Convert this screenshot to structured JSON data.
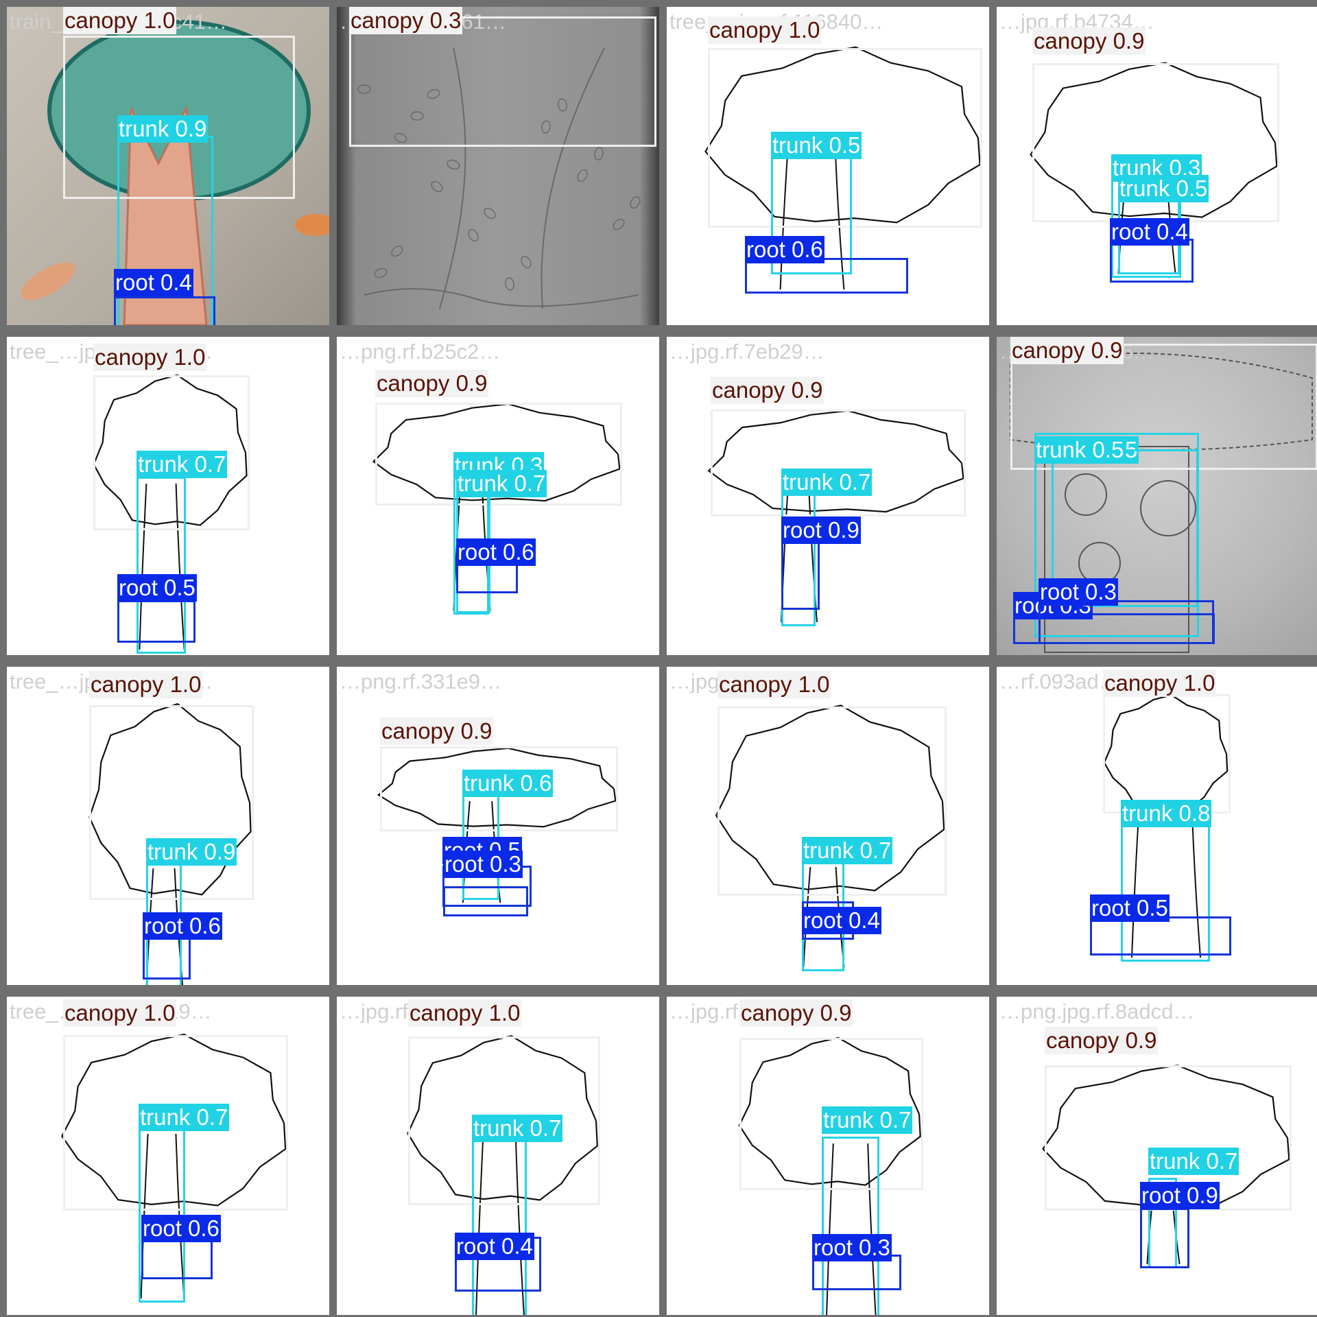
{
  "panel": {
    "type": "object-detection-prediction-grid",
    "label_colors": {
      "canopy": "#efefef",
      "trunk": "#26d3e6",
      "root": "#1335d9",
      "canopy_text": "#5a1306"
    }
  },
  "tiles": [
    {
      "filename": "train_…jpg.rf.50cc41…",
      "style": "photo-color",
      "detections": [
        {
          "cls": "canopy",
          "label": "canopy 1.0"
        },
        {
          "cls": "trunk",
          "label": "trunk 0.9"
        },
        {
          "cls": "root",
          "label": "root 0.4"
        }
      ]
    },
    {
      "filename": "…jpg.rf.1a7761…",
      "style": "photo-gray",
      "detections": [
        {
          "cls": "canopy",
          "label": "canopy 0.3"
        }
      ]
    },
    {
      "filename": "tree_…jpg.rf.116840…",
      "style": "drawing",
      "detections": [
        {
          "cls": "canopy",
          "label": "canopy 1.0"
        },
        {
          "cls": "trunk",
          "label": "trunk 0.5"
        },
        {
          "cls": "root",
          "label": "root 0.6"
        }
      ]
    },
    {
      "filename": "…jpg.rf.b4734…",
      "style": "drawing",
      "detections": [
        {
          "cls": "canopy",
          "label": "canopy 0.9"
        },
        {
          "cls": "trunk",
          "label": "trunk 0.3"
        },
        {
          "cls": "trunk",
          "label": "trunk 0.5"
        },
        {
          "cls": "root",
          "label": "root 0.4"
        }
      ]
    },
    {
      "filename": "tree_…jpg.rf.172a4…",
      "style": "drawing",
      "detections": [
        {
          "cls": "canopy",
          "label": "canopy 1.0"
        },
        {
          "cls": "trunk",
          "label": "trunk 0.7"
        },
        {
          "cls": "root",
          "label": "root 0.5"
        }
      ]
    },
    {
      "filename": "…png.rf.b25c2…",
      "style": "drawing",
      "detections": [
        {
          "cls": "canopy",
          "label": "canopy 0.9"
        },
        {
          "cls": "trunk",
          "label": "trunk 0.3"
        },
        {
          "cls": "trunk",
          "label": "trunk 0.7"
        },
        {
          "cls": "root",
          "label": "root 0.6"
        }
      ]
    },
    {
      "filename": "…jpg.rf.7eb29…",
      "style": "drawing",
      "detections": [
        {
          "cls": "canopy",
          "label": "canopy 0.9"
        },
        {
          "cls": "trunk",
          "label": "trunk 0.7"
        },
        {
          "cls": "root",
          "label": "root 0.9"
        }
      ]
    },
    {
      "filename": "…jpg.rf.830d6…",
      "style": "photo-sketch",
      "detections": [
        {
          "cls": "canopy",
          "label": "canopy 0.9"
        },
        {
          "cls": "trunk",
          "label": "trunk 0.5"
        },
        {
          "cls": "trunk",
          "label": "trunk 0.5"
        },
        {
          "cls": "root",
          "label": "root 0.3"
        },
        {
          "cls": "root",
          "label": "root 0.3"
        }
      ]
    },
    {
      "filename": "tree_…jpg.rf.ae6a3…",
      "style": "drawing",
      "detections": [
        {
          "cls": "canopy",
          "label": "canopy 1.0"
        },
        {
          "cls": "trunk",
          "label": "trunk 0.9"
        },
        {
          "cls": "root",
          "label": "root 0.6"
        }
      ]
    },
    {
      "filename": "…png.rf.331e9…",
      "style": "drawing",
      "detections": [
        {
          "cls": "canopy",
          "label": "canopy 0.9"
        },
        {
          "cls": "trunk",
          "label": "trunk 0.6"
        },
        {
          "cls": "root",
          "label": "root 0.5"
        },
        {
          "cls": "root",
          "label": "root 0.3"
        }
      ]
    },
    {
      "filename": "…jpg.rf.a8c50…",
      "style": "drawing",
      "detections": [
        {
          "cls": "canopy",
          "label": "canopy 1.0"
        },
        {
          "cls": "trunk",
          "label": "trunk 0.7"
        },
        {
          "cls": "root",
          "label": "root 0.4"
        }
      ]
    },
    {
      "filename": "…rf.093ad…",
      "style": "drawing",
      "detections": [
        {
          "cls": "canopy",
          "label": "canopy 1.0"
        },
        {
          "cls": "trunk",
          "label": "trunk 0.8"
        },
        {
          "cls": "root",
          "label": "root 0.5"
        }
      ]
    },
    {
      "filename": "tree_…jpg.rf.fcf719…",
      "style": "drawing",
      "detections": [
        {
          "cls": "canopy",
          "label": "canopy 1.0"
        },
        {
          "cls": "trunk",
          "label": "trunk 0.7"
        },
        {
          "cls": "root",
          "label": "root 0.6"
        }
      ]
    },
    {
      "filename": "…jpg.rf.4d72e…",
      "style": "drawing",
      "detections": [
        {
          "cls": "canopy",
          "label": "canopy 1.0"
        },
        {
          "cls": "trunk",
          "label": "trunk 0.7"
        },
        {
          "cls": "root",
          "label": "root 0.4"
        }
      ]
    },
    {
      "filename": "…jpg.rf.ef6f0…",
      "style": "drawing",
      "detections": [
        {
          "cls": "canopy",
          "label": "canopy 0.9"
        },
        {
          "cls": "trunk",
          "label": "trunk 0.7"
        },
        {
          "cls": "root",
          "label": "root 0.3"
        }
      ]
    },
    {
      "filename": "…png.jpg.rf.8adcd…",
      "style": "drawing",
      "detections": [
        {
          "cls": "canopy",
          "label": "canopy 0.9"
        },
        {
          "cls": "trunk",
          "label": "trunk 0.7"
        },
        {
          "cls": "root",
          "label": "root 0.9"
        }
      ]
    }
  ]
}
